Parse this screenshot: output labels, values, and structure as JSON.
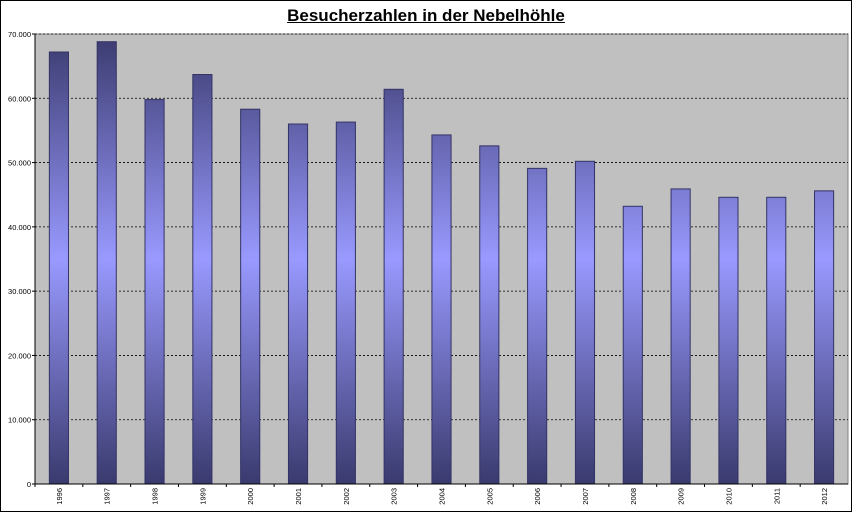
{
  "chart_data": {
    "type": "bar",
    "title": "Besucherzahlen in der Nebelhöhle",
    "xlabel": "",
    "ylabel": "",
    "categories": [
      "1996",
      "1997",
      "1998",
      "1999",
      "2000",
      "2001",
      "2002",
      "2003",
      "2004",
      "2005",
      "2006",
      "2007",
      "2008",
      "2009",
      "2010",
      "2011",
      "2012"
    ],
    "values": [
      67200,
      68800,
      59800,
      63700,
      58300,
      56000,
      56300,
      61400,
      54300,
      52600,
      49100,
      50200,
      43200,
      45900,
      44600,
      44600,
      45600
    ],
    "ylim": [
      0,
      70000
    ],
    "yticks": [
      0,
      10000,
      20000,
      30000,
      40000,
      50000,
      60000,
      70000
    ],
    "ytick_labels": [
      "0",
      "10.000",
      "20.000",
      "30.000",
      "40.000",
      "50.000",
      "60.000",
      "70.000"
    ],
    "grid": true,
    "legend": "none",
    "colors": {
      "plot_background": "#c0c0c0",
      "bar_edge": "#333366",
      "bar_outer": "#3a3a6e",
      "bar_inner": "#9999ff",
      "grid": "#000000"
    }
  }
}
